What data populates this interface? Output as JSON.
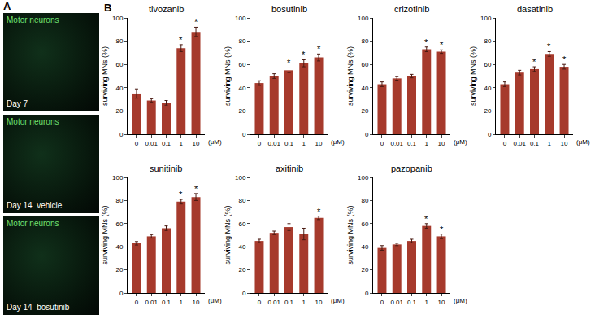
{
  "panel_a": {
    "letter": "A",
    "images": [
      {
        "label": "Motor neurons",
        "caption": "Day 7"
      },
      {
        "label": "Motor neurons",
        "caption": "Day 14  vehicle"
      },
      {
        "label": "Motor neurons",
        "caption": "Day 14  bosutinib"
      }
    ]
  },
  "panel_b_letter": "B",
  "chart_data": [
    {
      "type": "bar",
      "title": "tivozanib",
      "categories": [
        "0",
        "0.01",
        "0.1",
        "1",
        "10"
      ],
      "values": [
        35,
        29,
        27,
        74,
        88
      ],
      "errors": [
        4,
        1.5,
        2,
        3,
        4
      ],
      "significance": [
        null,
        null,
        null,
        "*",
        "*"
      ],
      "xlabel": "(μM)",
      "ylabel": "surviving MNs (%)",
      "ylim": [
        0,
        100
      ],
      "yticks": [
        0,
        20,
        40,
        60,
        80,
        100
      ],
      "color": "#a63a2c",
      "grid": false
    },
    {
      "type": "bar",
      "title": "bosutinib",
      "categories": [
        "0",
        "0.01",
        "0.1",
        "1",
        "10"
      ],
      "values": [
        44,
        50,
        55,
        61,
        66
      ],
      "errors": [
        2,
        2,
        2,
        3,
        3
      ],
      "significance": [
        null,
        null,
        "*",
        "*",
        "*"
      ],
      "xlabel": "(μM)",
      "ylabel": "surviving MNs (%)",
      "ylim": [
        0,
        100
      ],
      "yticks": [
        0,
        20,
        40,
        60,
        80,
        100
      ],
      "color": "#a63a2c",
      "grid": false
    },
    {
      "type": "bar",
      "title": "crizotinib",
      "categories": [
        "0",
        "0.01",
        "0.1",
        "1",
        "10"
      ],
      "values": [
        43,
        48,
        50,
        73,
        71
      ],
      "errors": [
        2,
        1.5,
        1.5,
        2,
        1.5
      ],
      "significance": [
        null,
        null,
        null,
        "*",
        "*"
      ],
      "xlabel": "(μM)",
      "ylabel": "surviving MNs (%)",
      "ylim": [
        0,
        100
      ],
      "yticks": [
        0,
        20,
        40,
        60,
        80,
        100
      ],
      "color": "#a63a2c",
      "grid": false
    },
    {
      "type": "bar",
      "title": "dasatinib",
      "categories": [
        "0",
        "0.01",
        "0.1",
        "1",
        "10"
      ],
      "values": [
        43,
        53,
        56,
        69,
        58
      ],
      "errors": [
        2,
        2,
        2,
        2,
        2
      ],
      "significance": [
        null,
        null,
        "*",
        "*",
        "*"
      ],
      "xlabel": "(μM)",
      "ylabel": "surviving MNs (%)",
      "ylim": [
        0,
        100
      ],
      "yticks": [
        0,
        20,
        40,
        60,
        80,
        100
      ],
      "color": "#a63a2c",
      "grid": false
    },
    {
      "type": "bar",
      "title": "sunitinib",
      "categories": [
        "0",
        "0.01",
        "0.1",
        "1",
        "10"
      ],
      "values": [
        43,
        49,
        56,
        79,
        83
      ],
      "errors": [
        1.5,
        1.5,
        2,
        2,
        3
      ],
      "significance": [
        null,
        null,
        null,
        "*",
        "*"
      ],
      "xlabel": "(μM)",
      "ylabel": "surviving MNs (%)",
      "ylim": [
        0,
        100
      ],
      "yticks": [
        0,
        20,
        40,
        60,
        80,
        100
      ],
      "color": "#a63a2c",
      "grid": false
    },
    {
      "type": "bar",
      "title": "axitinib",
      "categories": [
        "0",
        "0.01",
        "0.1",
        "1",
        "10"
      ],
      "values": [
        45,
        52,
        57,
        51,
        65
      ],
      "errors": [
        1.5,
        1.5,
        3,
        5,
        1.5
      ],
      "significance": [
        null,
        null,
        null,
        null,
        "*"
      ],
      "xlabel": "(μM)",
      "ylabel": "surviving MNs (%)",
      "ylim": [
        0,
        100
      ],
      "yticks": [
        0,
        20,
        40,
        60,
        80,
        100
      ],
      "color": "#a63a2c",
      "grid": false
    },
    {
      "type": "bar",
      "title": "pazopanib",
      "categories": [
        "0",
        "0.01",
        "0.1",
        "1",
        "10"
      ],
      "values": [
        39,
        42,
        45,
        58,
        49
      ],
      "errors": [
        2,
        1,
        1.5,
        2,
        2
      ],
      "significance": [
        null,
        null,
        null,
        "*",
        "*"
      ],
      "xlabel": "(μM)",
      "ylabel": "surviving MNs (%)",
      "ylim": [
        0,
        100
      ],
      "yticks": [
        0,
        20,
        40,
        60,
        80,
        100
      ],
      "color": "#a63a2c",
      "grid": false
    }
  ]
}
